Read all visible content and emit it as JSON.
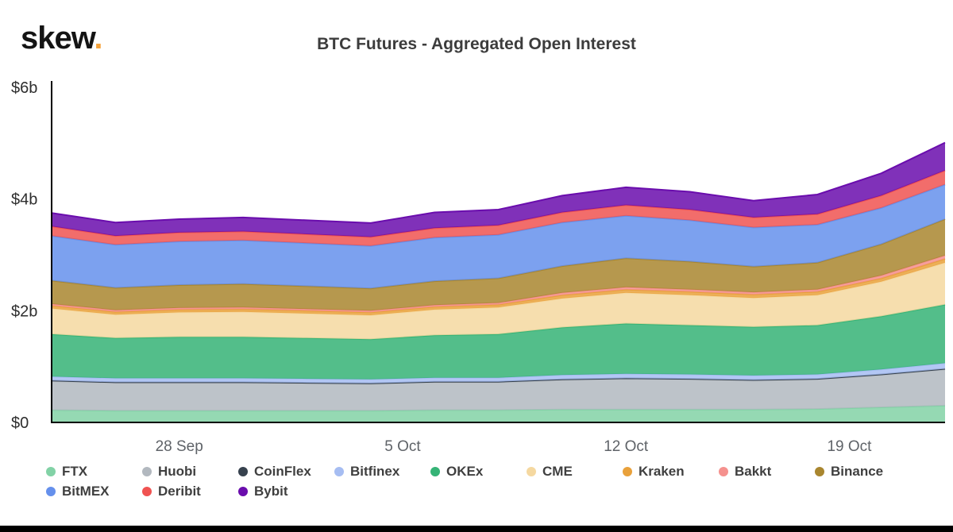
{
  "header": {
    "logo_text": "skew",
    "logo_dot": ".",
    "title": "BTC Futures - Aggregated Open Interest"
  },
  "chart_data": {
    "type": "area",
    "stacked": true,
    "title": "BTC Futures - Aggregated Open Interest",
    "units": "USD billions",
    "ylim": [
      0,
      6
    ],
    "grid": false,
    "legend_position": "bottom",
    "y_ticks": [
      {
        "value": 0,
        "label": "$0"
      },
      {
        "value": 2,
        "label": "$2b"
      },
      {
        "value": 4,
        "label": "$4b"
      },
      {
        "value": 6,
        "label": "$6b"
      }
    ],
    "x_dates": [
      "24 Sep",
      "26 Sep",
      "28 Sep",
      "30 Sep",
      "2 Oct",
      "4 Oct",
      "6 Oct",
      "8 Oct",
      "10 Oct",
      "12 Oct",
      "14 Oct",
      "16 Oct",
      "18 Oct",
      "20 Oct",
      "22 Oct"
    ],
    "x_days": [
      0,
      2,
      4,
      6,
      8,
      10,
      12,
      14,
      16,
      18,
      20,
      22,
      24,
      26,
      28
    ],
    "x_ticks": [
      {
        "day": 4,
        "label": "28 Sep"
      },
      {
        "day": 11,
        "label": "5 Oct"
      },
      {
        "day": 18,
        "label": "12 Oct"
      },
      {
        "day": 25,
        "label": "19 Oct"
      }
    ],
    "series": [
      {
        "name": "FTX",
        "color": "#82d2a6",
        "values": [
          0.22,
          0.21,
          0.21,
          0.21,
          0.21,
          0.21,
          0.22,
          0.22,
          0.23,
          0.23,
          0.23,
          0.23,
          0.24,
          0.27,
          0.3
        ]
      },
      {
        "name": "Huobi",
        "color": "#b2b8bf",
        "values": [
          0.52,
          0.5,
          0.5,
          0.5,
          0.49,
          0.48,
          0.5,
          0.5,
          0.53,
          0.55,
          0.54,
          0.52,
          0.53,
          0.58,
          0.65
        ]
      },
      {
        "name": "CoinFlex",
        "color": "#37424e",
        "values": [
          0.01,
          0.01,
          0.01,
          0.01,
          0.01,
          0.01,
          0.01,
          0.01,
          0.01,
          0.01,
          0.01,
          0.01,
          0.01,
          0.01,
          0.01
        ]
      },
      {
        "name": "Bitfinex",
        "color": "#a6bdf2",
        "values": [
          0.07,
          0.07,
          0.07,
          0.07,
          0.07,
          0.07,
          0.07,
          0.07,
          0.08,
          0.08,
          0.08,
          0.08,
          0.08,
          0.09,
          0.1
        ]
      },
      {
        "name": "OKEx",
        "color": "#35b376",
        "values": [
          0.76,
          0.72,
          0.74,
          0.74,
          0.73,
          0.72,
          0.76,
          0.78,
          0.85,
          0.9,
          0.88,
          0.87,
          0.88,
          0.95,
          1.05
        ]
      },
      {
        "name": "CME",
        "color": "#f5d8a0",
        "values": [
          0.46,
          0.42,
          0.44,
          0.45,
          0.44,
          0.43,
          0.46,
          0.48,
          0.52,
          0.55,
          0.54,
          0.52,
          0.54,
          0.62,
          0.75
        ]
      },
      {
        "name": "Kraken",
        "color": "#e9a13b",
        "values": [
          0.05,
          0.05,
          0.05,
          0.05,
          0.05,
          0.05,
          0.05,
          0.05,
          0.06,
          0.06,
          0.06,
          0.06,
          0.06,
          0.06,
          0.07
        ]
      },
      {
        "name": "Bakkt",
        "color": "#f5918e",
        "values": [
          0.03,
          0.03,
          0.03,
          0.03,
          0.03,
          0.03,
          0.03,
          0.03,
          0.04,
          0.04,
          0.04,
          0.04,
          0.04,
          0.05,
          0.06
        ]
      },
      {
        "name": "Binance",
        "color": "#a9862f",
        "values": [
          0.42,
          0.4,
          0.41,
          0.42,
          0.41,
          0.4,
          0.43,
          0.44,
          0.48,
          0.52,
          0.5,
          0.46,
          0.48,
          0.56,
          0.65
        ]
      },
      {
        "name": "BitMEX",
        "color": "#6590ec",
        "values": [
          0.8,
          0.77,
          0.78,
          0.78,
          0.77,
          0.76,
          0.78,
          0.78,
          0.78,
          0.76,
          0.74,
          0.7,
          0.68,
          0.65,
          0.62
        ]
      },
      {
        "name": "Deribit",
        "color": "#f05351",
        "values": [
          0.17,
          0.16,
          0.16,
          0.16,
          0.16,
          0.16,
          0.17,
          0.17,
          0.18,
          0.19,
          0.19,
          0.18,
          0.19,
          0.22,
          0.25
        ]
      },
      {
        "name": "Bybit",
        "color": "#6a0dad",
        "values": [
          0.24,
          0.24,
          0.24,
          0.25,
          0.25,
          0.25,
          0.28,
          0.28,
          0.3,
          0.32,
          0.32,
          0.3,
          0.35,
          0.4,
          0.5
        ]
      }
    ]
  }
}
